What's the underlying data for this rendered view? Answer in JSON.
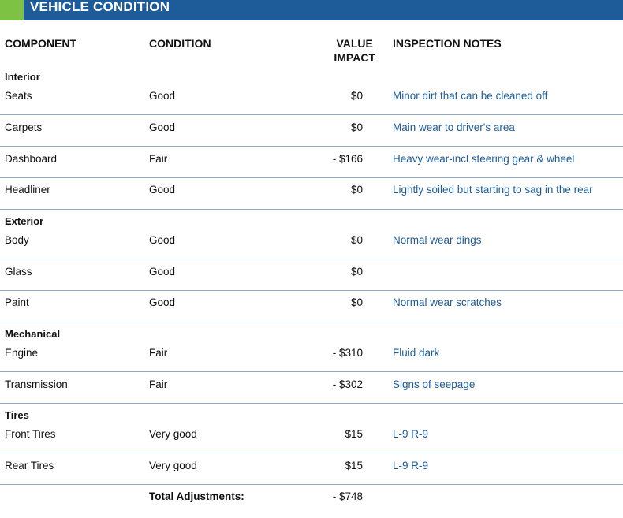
{
  "header": {
    "title": "VEHICLE CONDITION",
    "bar_color": "#1e5c99",
    "accent_color": "#7dc242"
  },
  "columns": {
    "component": "COMPONENT",
    "condition": "CONDITION",
    "impact_line1": "VALUE",
    "impact_line2": "IMPACT",
    "notes": "INSPECTION NOTES"
  },
  "sections": [
    {
      "name": "Interior",
      "rows": [
        {
          "component": "Seats",
          "condition": "Good",
          "impact": "$0",
          "notes": "Minor dirt that can be cleaned off"
        },
        {
          "component": "Carpets",
          "condition": "Good",
          "impact": "$0",
          "notes": "Main wear to driver's area"
        },
        {
          "component": "Dashboard",
          "condition": "Fair",
          "impact": "- $166",
          "notes": "Heavy wear-incl steering gear & wheel"
        },
        {
          "component": "Headliner",
          "condition": "Good",
          "impact": "$0",
          "notes": "Lightly soiled but starting to sag in the rear"
        }
      ]
    },
    {
      "name": "Exterior",
      "rows": [
        {
          "component": "Body",
          "condition": "Good",
          "impact": "$0",
          "notes": "Normal wear dings"
        },
        {
          "component": "Glass",
          "condition": "Good",
          "impact": "$0",
          "notes": ""
        },
        {
          "component": "Paint",
          "condition": "Good",
          "impact": "$0",
          "notes": "Normal wear scratches"
        }
      ]
    },
    {
      "name": "Mechanical",
      "rows": [
        {
          "component": "Engine",
          "condition": "Fair",
          "impact": "- $310",
          "notes": "Fluid dark"
        },
        {
          "component": "Transmission",
          "condition": "Fair",
          "impact": "- $302",
          "notes": "Signs of seepage"
        }
      ]
    },
    {
      "name": "Tires",
      "rows": [
        {
          "component": "Front Tires",
          "condition": "Very good",
          "impact": "$15",
          "notes": "L-9 R-9"
        },
        {
          "component": "Rear Tires",
          "condition": "Very good",
          "impact": "$15",
          "notes": "L-9 R-9"
        }
      ]
    }
  ],
  "total": {
    "label": "Total Adjustments:",
    "value": "- $748"
  }
}
